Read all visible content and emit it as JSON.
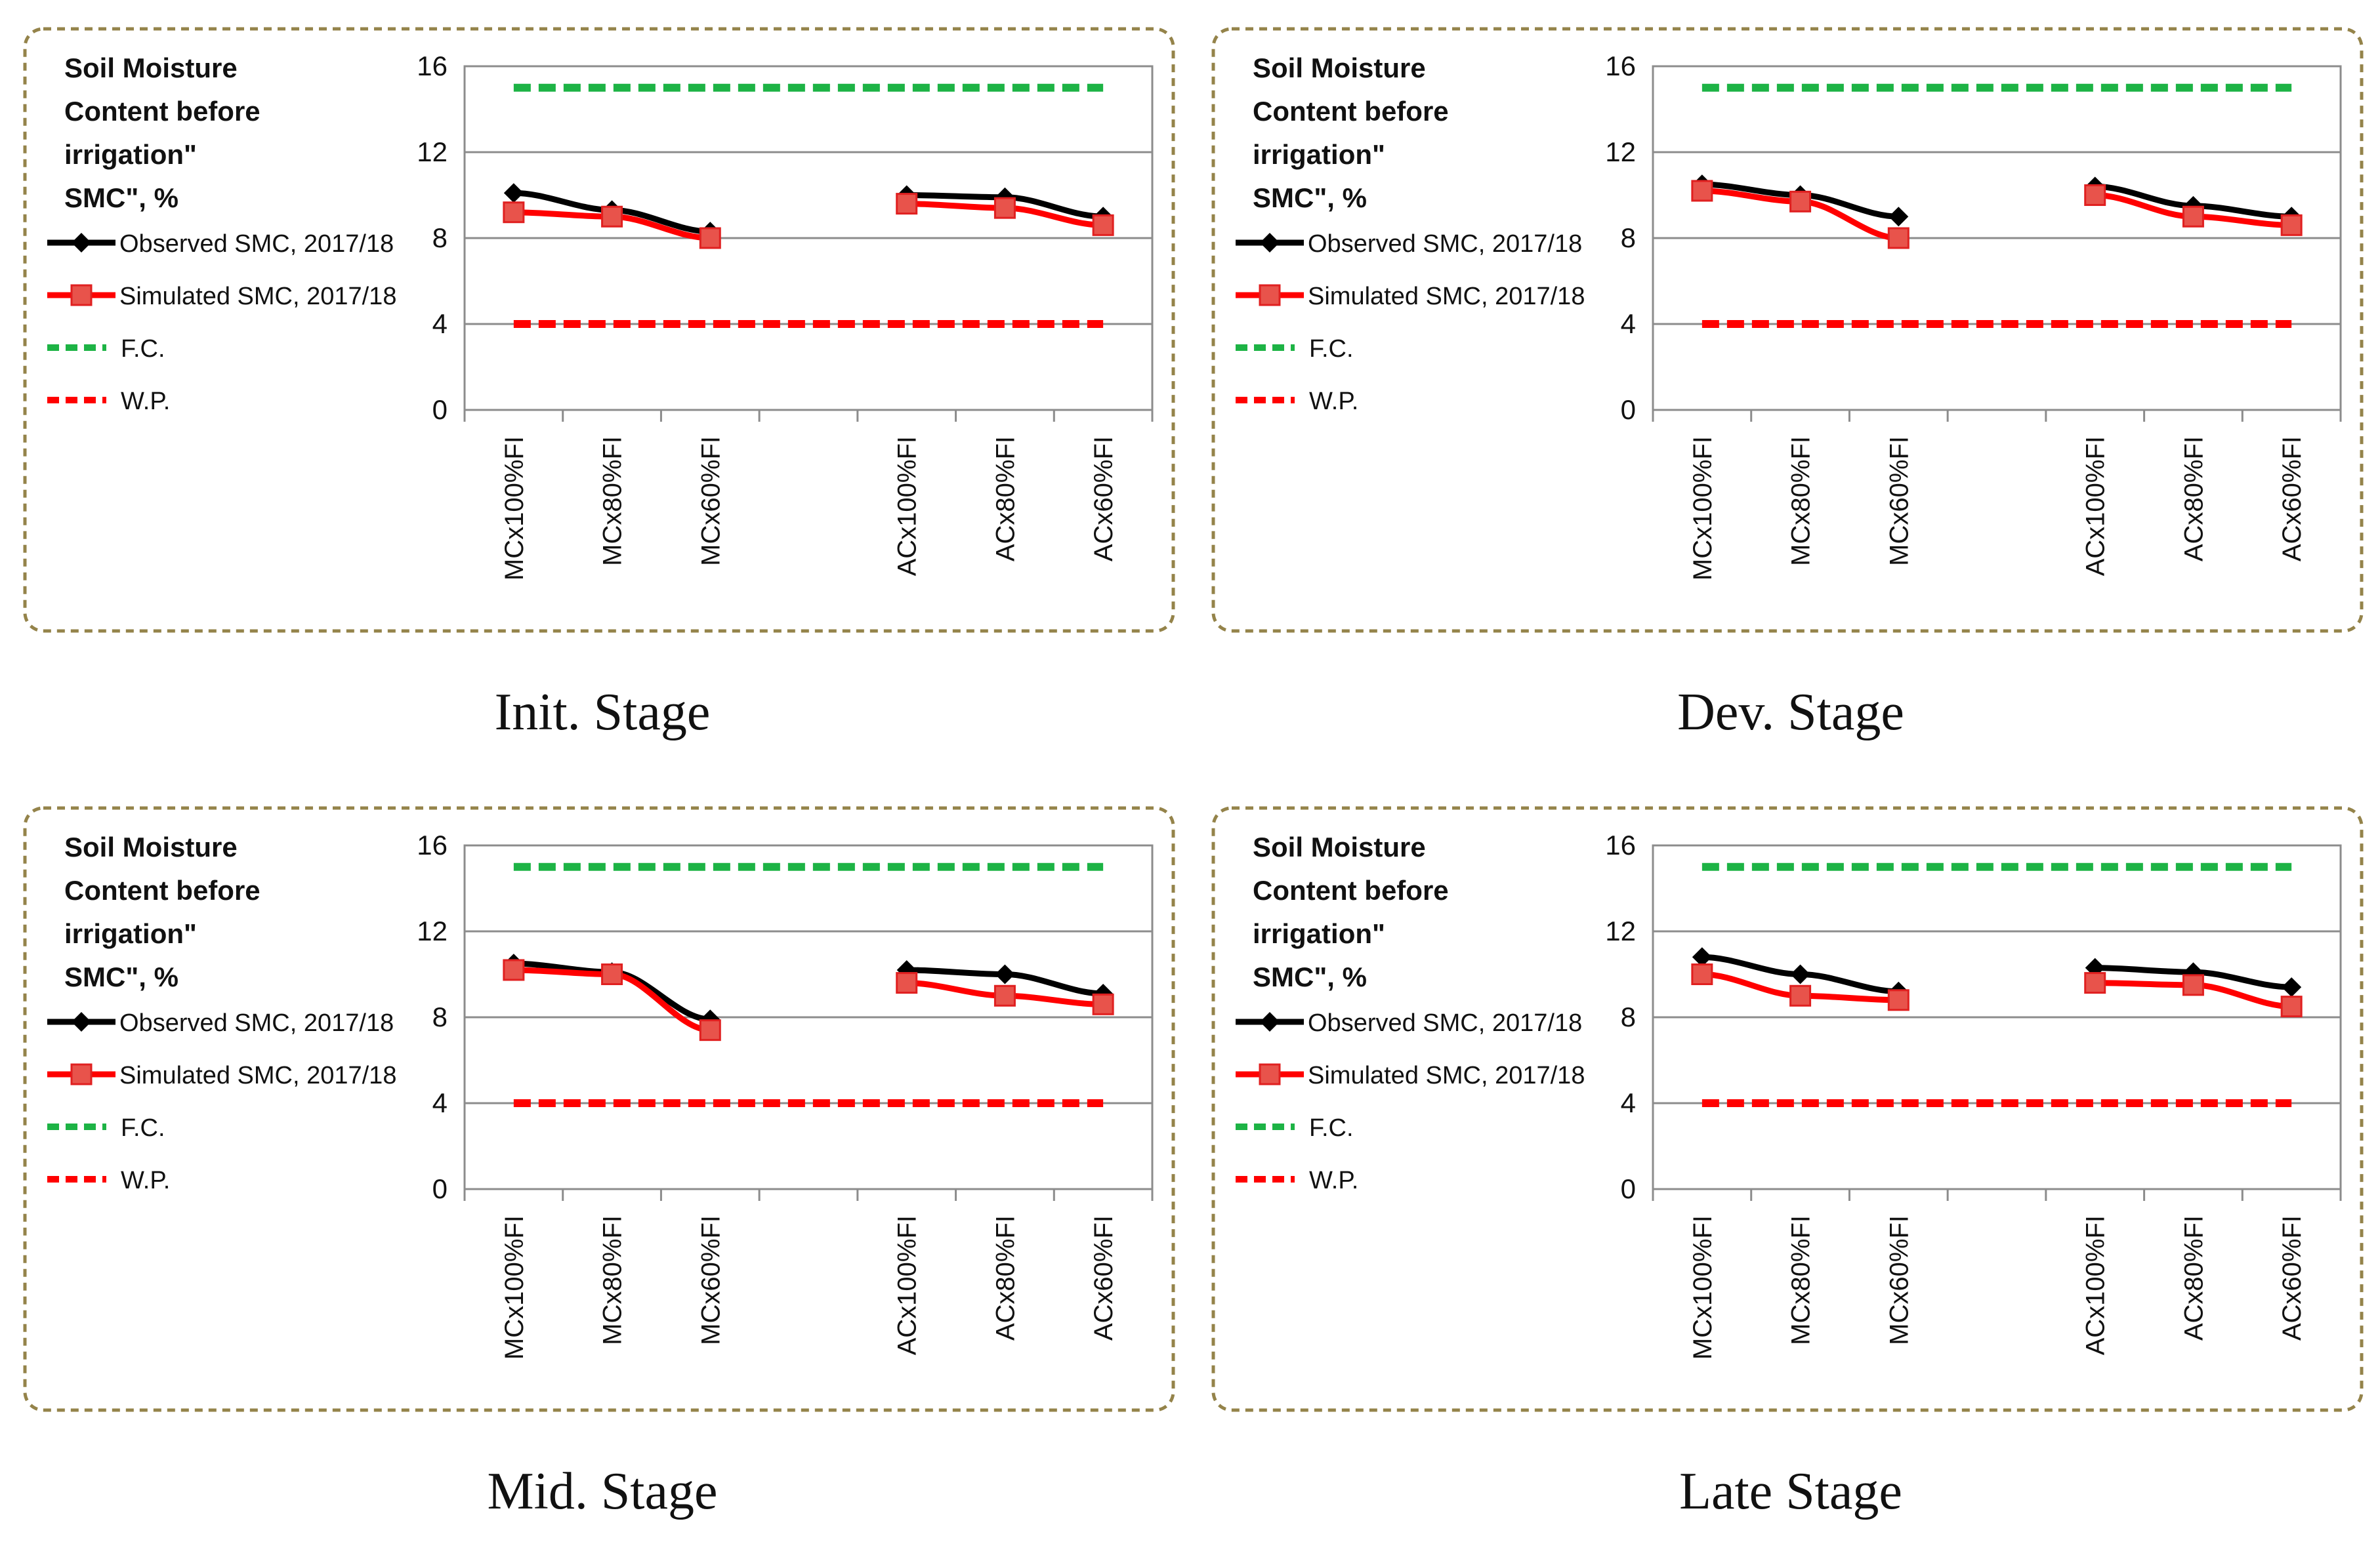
{
  "chart_data": [
    {
      "type": "line",
      "stage_label": "Init. Stage",
      "title_lines": [
        "Soil Moisture",
        "Content before",
        "irrigation\"",
        "SMC\", %"
      ],
      "categories": [
        "MCx100%FI",
        "MCx80%FI",
        "MCx60%FI",
        "",
        "ACx100%FI",
        "ACx80%FI",
        "ACx60%FI"
      ],
      "ylim": [
        0,
        16
      ],
      "yticks": [
        "0",
        "4",
        "8",
        "12",
        "16"
      ],
      "grid": true,
      "legend_position": "left",
      "series": [
        {
          "name": "Observed SMC, 2017/18",
          "color": "#000000",
          "marker": "diamond",
          "style": "solid",
          "values": [
            10.1,
            9.3,
            8.3,
            null,
            10.0,
            9.9,
            9.0
          ]
        },
        {
          "name": "Simulated SMC, 2017/18",
          "color": "#ff0000",
          "marker": "square",
          "style": "solid",
          "values": [
            9.2,
            9.0,
            8.0,
            null,
            9.6,
            9.4,
            8.6
          ]
        },
        {
          "name": "F.C.",
          "color": "#1db345",
          "marker": "none",
          "style": "dashed",
          "values": [
            15,
            15,
            15,
            15,
            15,
            15,
            15
          ]
        },
        {
          "name": "W.P.",
          "color": "#ff0000",
          "marker": "none",
          "style": "dashed",
          "values": [
            4,
            4,
            4,
            4,
            4,
            4,
            4
          ]
        }
      ]
    },
    {
      "type": "line",
      "stage_label": "Dev. Stage",
      "title_lines": [
        "Soil Moisture",
        "Content before",
        "irrigation\"",
        "SMC\", %"
      ],
      "categories": [
        "MCx100%FI",
        "MCx80%FI",
        "MCx60%FI",
        "",
        "ACx100%FI",
        "ACx80%FI",
        "ACx60%FI"
      ],
      "ylim": [
        0,
        16
      ],
      "yticks": [
        "0",
        "4",
        "8",
        "12",
        "16"
      ],
      "grid": true,
      "legend_position": "left",
      "series": [
        {
          "name": "Observed SMC, 2017/18",
          "color": "#000000",
          "marker": "diamond",
          "style": "solid",
          "values": [
            10.5,
            10.0,
            9.0,
            null,
            10.4,
            9.5,
            9.0
          ]
        },
        {
          "name": "Simulated SMC, 2017/18",
          "color": "#ff0000",
          "marker": "square",
          "style": "solid",
          "values": [
            10.2,
            9.7,
            8.0,
            null,
            10.0,
            9.0,
            8.6
          ]
        },
        {
          "name": "F.C.",
          "color": "#1db345",
          "marker": "none",
          "style": "dashed",
          "values": [
            15,
            15,
            15,
            15,
            15,
            15,
            15
          ]
        },
        {
          "name": "W.P.",
          "color": "#ff0000",
          "marker": "none",
          "style": "dashed",
          "values": [
            4,
            4,
            4,
            4,
            4,
            4,
            4
          ]
        }
      ]
    },
    {
      "type": "line",
      "stage_label": "Mid. Stage",
      "title_lines": [
        "Soil Moisture",
        "Content before",
        "irrigation\"",
        "SMC\", %"
      ],
      "categories": [
        "MCx100%FI",
        "MCx80%FI",
        "MCx60%FI",
        "",
        "ACx100%FI",
        "ACx80%FI",
        "ACx60%FI"
      ],
      "ylim": [
        0,
        16
      ],
      "yticks": [
        "0",
        "4",
        "8",
        "12",
        "16"
      ],
      "grid": true,
      "legend_position": "left",
      "series": [
        {
          "name": "Observed SMC, 2017/18",
          "color": "#000000",
          "marker": "diamond",
          "style": "solid",
          "values": [
            10.5,
            10.1,
            7.9,
            null,
            10.2,
            10.0,
            9.1
          ]
        },
        {
          "name": "Simulated SMC, 2017/18",
          "color": "#ff0000",
          "marker": "square",
          "style": "solid",
          "values": [
            10.2,
            10.0,
            7.4,
            null,
            9.6,
            9.0,
            8.6
          ]
        },
        {
          "name": "F.C.",
          "color": "#1db345",
          "marker": "none",
          "style": "dashed",
          "values": [
            15,
            15,
            15,
            15,
            15,
            15,
            15
          ]
        },
        {
          "name": "W.P.",
          "color": "#ff0000",
          "marker": "none",
          "style": "dashed",
          "values": [
            4,
            4,
            4,
            4,
            4,
            4,
            4
          ]
        }
      ]
    },
    {
      "type": "line",
      "stage_label": "Late Stage",
      "title_lines": [
        "Soil Moisture",
        "Content before",
        "irrigation\"",
        "SMC\", %"
      ],
      "categories": [
        "MCx100%FI",
        "MCx80%FI",
        "MCx60%FI",
        "",
        "ACx100%FI",
        "ACx80%FI",
        "ACx60%FI"
      ],
      "ylim": [
        0,
        16
      ],
      "yticks": [
        "0",
        "4",
        "8",
        "12",
        "16"
      ],
      "grid": true,
      "legend_position": "left",
      "series": [
        {
          "name": "Observed SMC, 2017/18",
          "color": "#000000",
          "marker": "diamond",
          "style": "solid",
          "values": [
            10.8,
            10.0,
            9.2,
            null,
            10.3,
            10.1,
            9.4
          ]
        },
        {
          "name": "Simulated SMC, 2017/18",
          "color": "#ff0000",
          "marker": "square",
          "style": "solid",
          "values": [
            10.0,
            9.0,
            8.8,
            null,
            9.6,
            9.5,
            8.5
          ]
        },
        {
          "name": "F.C.",
          "color": "#1db345",
          "marker": "none",
          "style": "dashed",
          "values": [
            15,
            15,
            15,
            15,
            15,
            15,
            15
          ]
        },
        {
          "name": "W.P.",
          "color": "#ff0000",
          "marker": "none",
          "style": "dashed",
          "values": [
            4,
            4,
            4,
            4,
            4,
            4,
            4
          ]
        }
      ]
    }
  ]
}
